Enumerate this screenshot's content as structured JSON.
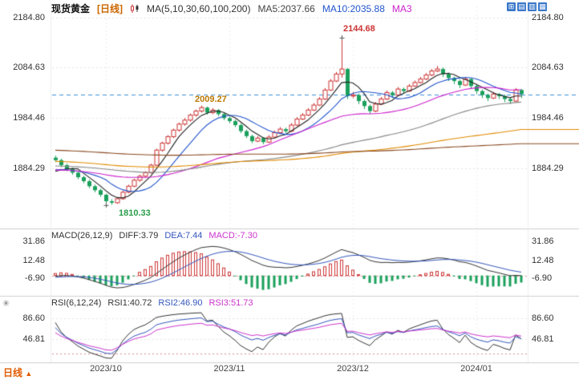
{
  "header": {
    "symbol": "现货黄金",
    "period_tag": "[日线]",
    "ma_overlay_label": "MA(5,10,30,60,100,200)",
    "ma5_value": "MA5:2037.66",
    "ma10_value": "MA10:2035.88",
    "ma30_partial": "MA3",
    "toolbar_icon_glyphs": [
      "⊞",
      "▤",
      "▥",
      "▦"
    ]
  },
  "macd_header": {
    "title": "MACD(26,12,9)",
    "diff": "DIFF:3.79",
    "dea": "DEA:7.44",
    "macd": "MACD:-7.30"
  },
  "rsi_header": {
    "title": "RSI(6,12,24)",
    "rsi1": "RSI1:40.72",
    "rsi2": "RSI2:46.90",
    "rsi3": "RSI3:51.73"
  },
  "footer": {
    "period_label": "日线",
    "arrow": "▲"
  },
  "settings_icon_glyph": "✳",
  "colors": {
    "up": "#cc3333",
    "down": "#1ba05c",
    "dashed_price_line": "#3c8fd4",
    "ma5": "#222222",
    "ma10": "#2255cc",
    "ma30": "#cc22cc",
    "ma60": "#888888",
    "ma100": "#e08a00",
    "ma200": "#8a4a22",
    "diff_line": "#333333",
    "dea_line": "#3355bb",
    "rsi1": "#333333",
    "rsi2": "#3355bb",
    "rsi3": "#cc33cc",
    "grid": "#e3e3e3",
    "divider": "#cfcfcf",
    "warn_dotted": "#d98c8c",
    "annotation_peak": "#cc3333",
    "annotation_shoulder": "#bb7700",
    "annotation_trough": "#2a9d4a"
  },
  "chart_data": {
    "type": "candlestick",
    "title": "现货黄金 [日线]",
    "legend_position": "top",
    "grid": "dotted",
    "x_tick_labels": [
      "2023/10",
      "2023/11",
      "2023/12",
      "2024/01"
    ],
    "x_tick_candle_index": [
      9,
      31,
      53,
      75
    ],
    "main_yticks": [
      "2184.80",
      "2084.63",
      "1984.46",
      "1884.29"
    ],
    "main_ylim": [
      1770,
      2207
    ],
    "price_line_value": 2031,
    "ma_periods": [
      5,
      10,
      30,
      60,
      100,
      200
    ],
    "annotations": {
      "peak": {
        "text": "2144.68",
        "candle_index": 51
      },
      "shoulder": {
        "text": "2009.27",
        "candle_index": 26
      },
      "trough": {
        "text": "1810.33",
        "candle_index": 9
      }
    },
    "candles": [
      [
        1905,
        1909,
        1896,
        1900
      ],
      [
        1900,
        1903,
        1886,
        1890
      ],
      [
        1890,
        1893,
        1878,
        1882
      ],
      [
        1882,
        1885,
        1871,
        1875
      ],
      [
        1875,
        1878,
        1862,
        1866
      ],
      [
        1866,
        1869,
        1854,
        1858
      ],
      [
        1858,
        1861,
        1844,
        1848
      ],
      [
        1848,
        1851,
        1836,
        1840
      ],
      [
        1840,
        1843,
        1827,
        1831
      ],
      [
        1831,
        1833,
        1810.33,
        1818
      ],
      [
        1818,
        1822,
        1811,
        1815
      ],
      [
        1815,
        1826,
        1813,
        1823
      ],
      [
        1823,
        1839,
        1821,
        1836
      ],
      [
        1836,
        1851,
        1834,
        1848
      ],
      [
        1848,
        1863,
        1846,
        1860
      ],
      [
        1860,
        1871,
        1857,
        1868
      ],
      [
        1868,
        1878,
        1865,
        1875
      ],
      [
        1875,
        1893,
        1873,
        1890
      ],
      [
        1890,
        1923,
        1888,
        1920
      ],
      [
        1920,
        1937,
        1917,
        1934
      ],
      [
        1934,
        1950,
        1931,
        1947
      ],
      [
        1947,
        1963,
        1944,
        1960
      ],
      [
        1960,
        1975,
        1957,
        1972
      ],
      [
        1972,
        1984,
        1969,
        1980
      ],
      [
        1980,
        1993,
        1977,
        1990
      ],
      [
        1990,
        2001,
        1987,
        1998
      ],
      [
        1998,
        2009.27,
        1995,
        2005
      ],
      [
        2005,
        2007,
        1991,
        1995
      ],
      [
        1995,
        2004,
        1992,
        2000
      ],
      [
        2000,
        2002,
        1988,
        1992
      ],
      [
        1992,
        1995,
        1980,
        1984
      ],
      [
        1984,
        1987,
        1974,
        1978
      ],
      [
        1978,
        1981,
        1966,
        1970
      ],
      [
        1970,
        1973,
        1954,
        1958
      ],
      [
        1958,
        1961,
        1944,
        1948
      ],
      [
        1948,
        1951,
        1934,
        1938
      ],
      [
        1938,
        1948,
        1936,
        1944
      ],
      [
        1944,
        1946,
        1932,
        1936
      ],
      [
        1936,
        1950,
        1934,
        1946
      ],
      [
        1946,
        1959,
        1944,
        1955
      ],
      [
        1955,
        1966,
        1953,
        1962
      ],
      [
        1962,
        1965,
        1954,
        1958
      ],
      [
        1958,
        1974,
        1956,
        1970
      ],
      [
        1970,
        1986,
        1968,
        1982
      ],
      [
        1982,
        1994,
        1980,
        1990
      ],
      [
        1990,
        2004,
        1988,
        2000
      ],
      [
        2000,
        2014,
        1998,
        2010
      ],
      [
        2010,
        2026,
        2008,
        2022
      ],
      [
        2022,
        2044,
        2020,
        2040
      ],
      [
        2040,
        2062,
        2038,
        2058
      ],
      [
        2058,
        2076,
        2056,
        2072
      ],
      [
        2072,
        2144.68,
        2065,
        2082
      ],
      [
        2082,
        2084,
        2022,
        2028
      ],
      [
        2028,
        2036,
        2024,
        2030
      ],
      [
        2030,
        2033,
        2012,
        2018
      ],
      [
        2018,
        2021,
        2002,
        2008
      ],
      [
        2008,
        2011,
        1992,
        1998
      ],
      [
        1998,
        2016,
        1996,
        2012
      ],
      [
        2012,
        2026,
        2010,
        2022
      ],
      [
        2022,
        2039,
        2020,
        2035
      ],
      [
        2035,
        2038,
        2024,
        2030
      ],
      [
        2030,
        2046,
        2028,
        2042
      ],
      [
        2042,
        2045,
        2032,
        2038
      ],
      [
        2038,
        2052,
        2036,
        2048
      ],
      [
        2048,
        2059,
        2046,
        2055
      ],
      [
        2055,
        2066,
        2053,
        2062
      ],
      [
        2062,
        2074,
        2060,
        2070
      ],
      [
        2070,
        2082,
        2068,
        2078
      ],
      [
        2078,
        2088,
        2076,
        2082
      ],
      [
        2082,
        2085,
        2066,
        2072
      ],
      [
        2072,
        2075,
        2058,
        2064
      ],
      [
        2064,
        2067,
        2052,
        2058
      ],
      [
        2058,
        2061,
        2044,
        2050
      ],
      [
        2050,
        2066,
        2048,
        2062
      ],
      [
        2062,
        2064,
        2042,
        2048
      ],
      [
        2048,
        2051,
        2032,
        2038
      ],
      [
        2038,
        2041,
        2024,
        2030
      ],
      [
        2030,
        2033,
        2018,
        2024
      ],
      [
        2024,
        2036,
        2022,
        2032
      ],
      [
        2032,
        2034,
        2022,
        2028
      ],
      [
        2028,
        2031,
        2016,
        2022
      ],
      [
        2022,
        2025,
        2012,
        2018
      ],
      [
        2018,
        2044,
        2016,
        2040
      ],
      [
        2040,
        2042,
        2024,
        2032
      ]
    ],
    "macd_panel": {
      "params": [
        26,
        12,
        9
      ],
      "ylim": [
        -25,
        42
      ],
      "yticks": [
        "31.86",
        "12.48",
        "-6.90"
      ]
    },
    "rsi_panel": {
      "params": [
        6,
        12,
        24
      ],
      "ylim": [
        5,
        98
      ],
      "yticks": [
        "86.60",
        "46.81"
      ]
    }
  }
}
